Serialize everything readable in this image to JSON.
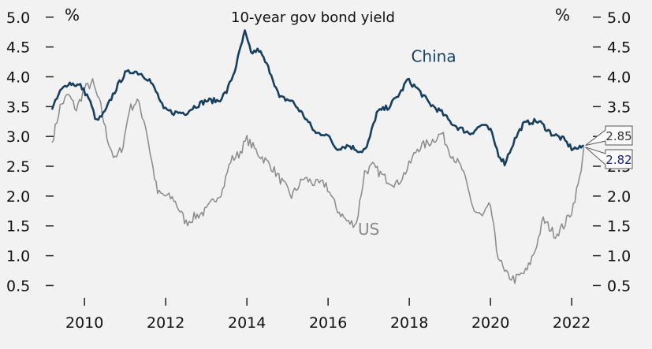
{
  "chart_data": {
    "type": "line",
    "title": "10-year gov bond yield",
    "y_unit_left": "%",
    "y_unit_right": "%",
    "xlim": [
      2009.2,
      2022.6
    ],
    "ylim": [
      0.4,
      5.05
    ],
    "y_ticks": [
      "0.5",
      "1.0",
      "1.5",
      "2.0",
      "2.5",
      "3.0",
      "3.5",
      "4.0",
      "4.5",
      "5.0"
    ],
    "x_ticks": [
      "2010",
      "2012",
      "2014",
      "2016",
      "2018",
      "2020",
      "2022"
    ],
    "grid": false,
    "series": [
      {
        "name": "China",
        "color": "#173f5f",
        "label_pos": [
          2018.6,
          4.25
        ],
        "end_value": "2.85",
        "x": [
          2009.2,
          2009.4,
          2009.6,
          2009.9,
          2010.1,
          2010.3,
          2010.5,
          2010.7,
          2010.9,
          2011.0,
          2011.2,
          2011.4,
          2011.6,
          2011.8,
          2011.95,
          2012.2,
          2012.5,
          2012.7,
          2013.0,
          2013.3,
          2013.5,
          2013.7,
          2013.85,
          2013.95,
          2014.1,
          2014.3,
          2014.6,
          2014.8,
          2015.1,
          2015.4,
          2015.7,
          2015.95,
          2016.2,
          2016.5,
          2016.8,
          2016.95,
          2017.2,
          2017.5,
          2017.8,
          2017.95,
          2018.2,
          2018.5,
          2018.8,
          2019.0,
          2019.2,
          2019.5,
          2019.8,
          2020.0,
          2020.2,
          2020.35,
          2020.6,
          2020.8,
          2021.0,
          2021.2,
          2021.5,
          2021.8,
          2022.0,
          2022.2,
          2022.3
        ],
        "values": [
          3.45,
          3.75,
          3.9,
          3.85,
          3.65,
          3.25,
          3.4,
          3.7,
          3.95,
          4.05,
          4.1,
          4.05,
          3.95,
          3.7,
          3.45,
          3.4,
          3.4,
          3.5,
          3.6,
          3.6,
          3.75,
          4.1,
          4.5,
          4.75,
          4.4,
          4.45,
          4.05,
          3.65,
          3.6,
          3.35,
          3.05,
          3.05,
          2.8,
          2.85,
          2.75,
          2.8,
          3.4,
          3.5,
          3.75,
          3.95,
          3.8,
          3.55,
          3.4,
          3.25,
          3.15,
          3.05,
          3.2,
          3.1,
          2.7,
          2.55,
          2.95,
          3.2,
          3.25,
          3.25,
          3.05,
          2.95,
          2.8,
          2.8,
          2.85
        ]
      },
      {
        "name": "US",
        "color": "#8a8a8a",
        "label_pos": [
          2017.0,
          1.35
        ],
        "end_value": "2.82",
        "x": [
          2009.2,
          2009.4,
          2009.6,
          2009.8,
          2010.0,
          2010.2,
          2010.4,
          2010.55,
          2010.75,
          2010.95,
          2011.1,
          2011.3,
          2011.5,
          2011.65,
          2011.8,
          2012.0,
          2012.2,
          2012.5,
          2012.7,
          2013.0,
          2013.2,
          2013.4,
          2013.6,
          2013.8,
          2014.0,
          2014.3,
          2014.6,
          2014.9,
          2015.1,
          2015.4,
          2015.7,
          2015.95,
          2016.2,
          2016.5,
          2016.7,
          2016.9,
          2017.1,
          2017.4,
          2017.7,
          2017.95,
          2018.2,
          2018.5,
          2018.8,
          2019.0,
          2019.3,
          2019.6,
          2019.8,
          2020.0,
          2020.15,
          2020.35,
          2020.6,
          2020.9,
          2021.1,
          2021.3,
          2021.6,
          2021.8,
          2022.0,
          2022.2,
          2022.3
        ],
        "values": [
          2.9,
          3.5,
          3.7,
          3.45,
          3.8,
          3.9,
          3.5,
          3.0,
          2.6,
          2.85,
          3.45,
          3.6,
          3.2,
          2.6,
          2.05,
          2.0,
          1.95,
          1.55,
          1.65,
          1.75,
          1.95,
          2.1,
          2.6,
          2.7,
          2.95,
          2.7,
          2.5,
          2.2,
          2.0,
          2.3,
          2.2,
          2.2,
          1.8,
          1.55,
          1.55,
          2.4,
          2.5,
          2.3,
          2.2,
          2.45,
          2.8,
          2.9,
          3.05,
          2.75,
          2.45,
          1.75,
          1.65,
          1.85,
          1.1,
          0.7,
          0.6,
          0.75,
          1.1,
          1.6,
          1.35,
          1.5,
          1.75,
          2.3,
          2.82
        ]
      }
    ]
  }
}
